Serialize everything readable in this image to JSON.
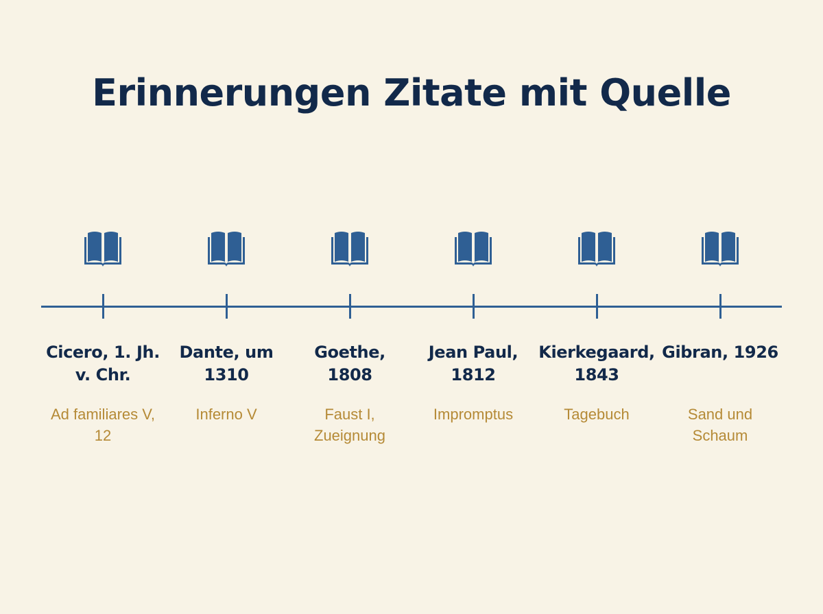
{
  "title": "Erinnerungen Zitate mit Quelle",
  "colors": {
    "background": "#f8f3e6",
    "title": "#12294a",
    "accent_blue": "#2f5f94",
    "source_gold": "#b58a36"
  },
  "events": [
    {
      "icon": "open-book-icon",
      "author_date": "Cicero, 1. Jh. v. Chr.",
      "source": "Ad familiares V, 12"
    },
    {
      "icon": "open-book-icon",
      "author_date": "Dante, um 1310",
      "source": "Inferno V"
    },
    {
      "icon": "open-book-icon",
      "author_date": "Goethe, 1808",
      "source": "Faust I, Zueignung"
    },
    {
      "icon": "open-book-icon",
      "author_date": "Jean Paul, 1812",
      "source": "Impromptus"
    },
    {
      "icon": "open-book-icon",
      "author_date": "Kierkegaard, 1843",
      "source": "Tagebuch"
    },
    {
      "icon": "open-book-icon",
      "author_date": "Gibran, 1926",
      "source": "Sand und Schaum"
    }
  ]
}
